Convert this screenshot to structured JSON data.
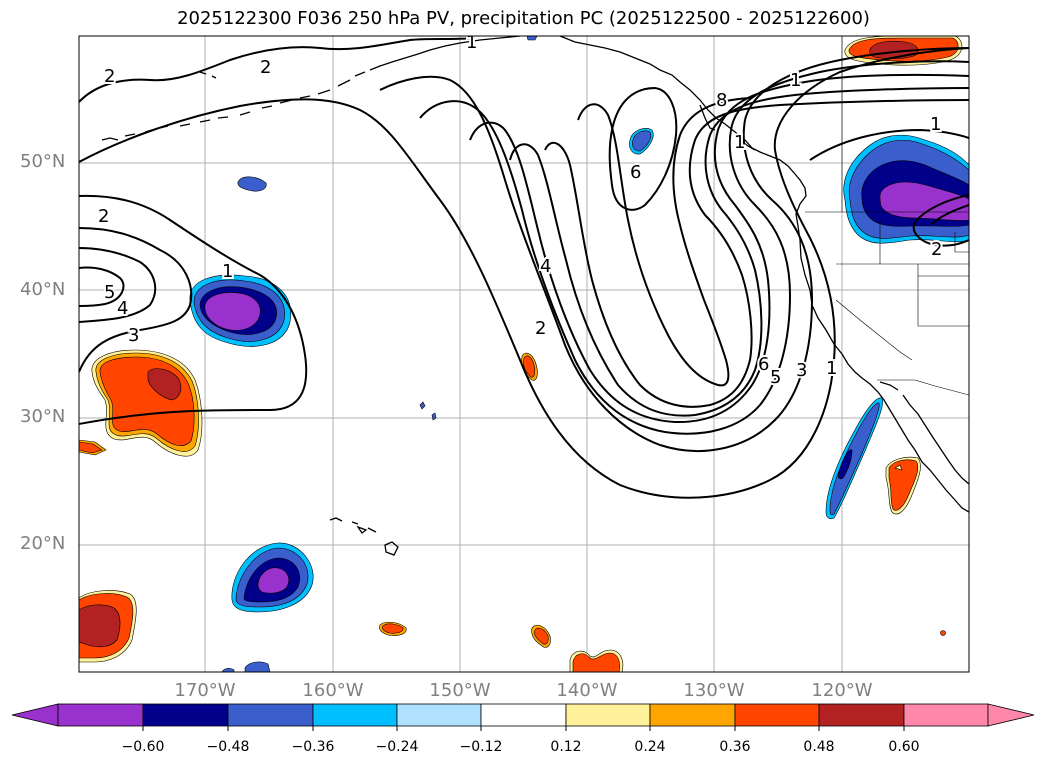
{
  "title": "2025122300 F036 250 hPa PV, precipitation PC (2025122500 - 2025122600)",
  "lat_labels": [
    "50°N",
    "40°N",
    "30°N",
    "20°N"
  ],
  "lon_labels": [
    "170°W",
    "160°W",
    "150°W",
    "140°W",
    "130°W",
    "120°W"
  ],
  "colorbar": {
    "colors": [
      "#9932cc",
      "#00008b",
      "#3a5fcd",
      "#00bfff",
      "#b0e2ff",
      "#ffffff",
      "#fff09a",
      "#ffa500",
      "#ff4500",
      "#b22222",
      "#ff88aa"
    ],
    "tick_labels": [
      "−0.60",
      "−0.48",
      "−0.36",
      "−0.24",
      "−0.12",
      "0.12",
      "0.24",
      "0.36",
      "0.48",
      "0.60"
    ]
  },
  "contour_labels": [
    "2",
    "2",
    "1",
    "2",
    "5",
    "4",
    "3",
    "1",
    "4",
    "2",
    "6",
    "8",
    "1",
    "1",
    "2",
    "6",
    "5",
    "3",
    "1",
    "1"
  ]
}
